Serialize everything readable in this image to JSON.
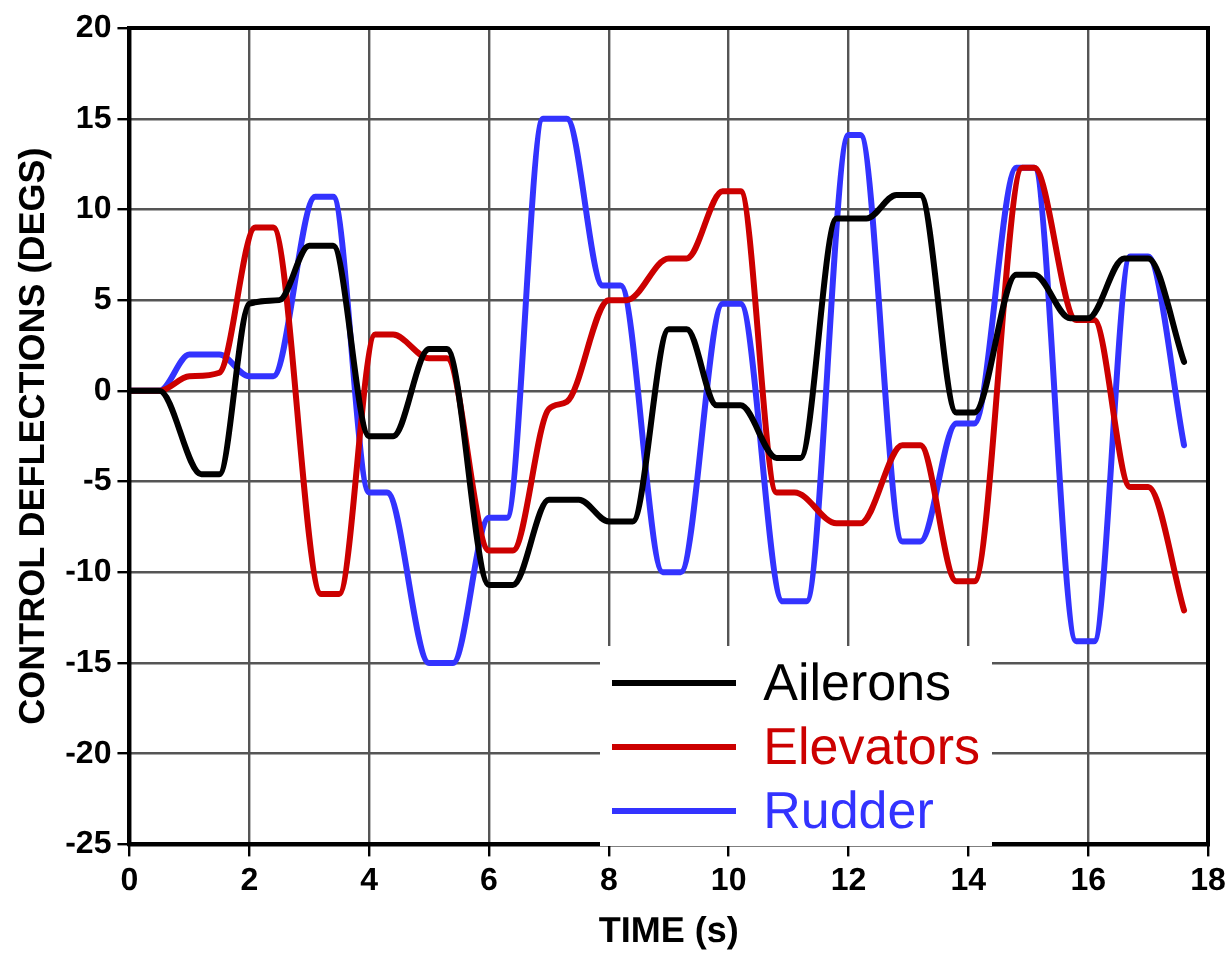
{
  "chart_data": {
    "type": "line",
    "xlabel": "TIME (s)",
    "ylabel": "CONTROL DEFLECTIONS (DEGS)",
    "xlim": [
      0,
      18
    ],
    "xticks": [
      0,
      2,
      4,
      6,
      8,
      10,
      12,
      14,
      16,
      18
    ],
    "ylim": [
      -25,
      20
    ],
    "yticks": [
      -25,
      -20,
      -15,
      -10,
      -5,
      0,
      5,
      10,
      15,
      20
    ],
    "grid": true,
    "legend": "bottom right",
    "marker": "none",
    "line_style": "solid",
    "series": [
      {
        "name": "Ailerons",
        "color": "#000000",
        "x": [
          0,
          0.5,
          1.2,
          1.5,
          2,
          2.5,
          3,
          3.4,
          4,
          4.4,
          5,
          5.3,
          6,
          6.4,
          7,
          7.5,
          8,
          8.4,
          9,
          9.3,
          9.8,
          10.2,
          10.8,
          11.2,
          11.8,
          12.3,
          12.8,
          13.2,
          13.8,
          14.1,
          14.8,
          15.1,
          15.7,
          16,
          16.6,
          17,
          17.6
        ],
        "values": [
          0,
          0,
          -4.6,
          -4.6,
          4.8,
          5,
          8,
          8,
          -2.5,
          -2.5,
          2.3,
          2.3,
          -10.7,
          -10.7,
          -6,
          -6,
          -7.2,
          -7.2,
          3.4,
          3.4,
          -0.8,
          -0.8,
          -3.7,
          -3.7,
          9.5,
          9.5,
          10.8,
          10.8,
          -1.2,
          -1.2,
          6.4,
          6.4,
          4,
          4,
          7.3,
          7.3,
          1.6
        ]
      },
      {
        "name": "Elevators",
        "color": "#cc0000",
        "x": [
          0,
          0.5,
          1,
          1.5,
          2.1,
          2.4,
          3.2,
          3.5,
          4.1,
          4.4,
          5,
          5.3,
          6,
          6.4,
          7,
          7.3,
          8,
          8.3,
          9,
          9.3,
          9.9,
          10.2,
          10.8,
          11.1,
          11.8,
          12.2,
          12.9,
          13.2,
          13.8,
          14.1,
          14.9,
          15.1,
          15.8,
          16.1,
          16.7,
          17,
          17.6
        ],
        "values": [
          0,
          0,
          0.8,
          1,
          9,
          9,
          -11.2,
          -11.2,
          3.1,
          3.1,
          1.8,
          1.8,
          -8.8,
          -8.8,
          -1,
          -0.6,
          5,
          5,
          7.3,
          7.3,
          11,
          11,
          -5.6,
          -5.6,
          -7.3,
          -7.3,
          -3,
          -3,
          -10.5,
          -10.5,
          12.3,
          12.3,
          3.9,
          3.9,
          -5.3,
          -5.3,
          -12.1
        ]
      },
      {
        "name": "Rudder",
        "color": "#3333ff",
        "x": [
          0,
          0.5,
          1,
          1.5,
          2,
          2.4,
          3.1,
          3.4,
          4,
          4.3,
          5,
          5.4,
          6,
          6.3,
          6.9,
          7.3,
          7.9,
          8.2,
          8.9,
          9.2,
          9.9,
          10.2,
          10.9,
          11.3,
          12,
          12.2,
          12.9,
          13.2,
          13.8,
          14.1,
          14.8,
          15.1,
          15.8,
          16.1,
          16.7,
          17,
          17.6
        ],
        "values": [
          0,
          0,
          2,
          2,
          0.8,
          0.8,
          10.7,
          10.7,
          -5.6,
          -5.6,
          -15,
          -15,
          -7,
          -7,
          15,
          15,
          5.8,
          5.8,
          -10,
          -10,
          4.8,
          4.8,
          -11.6,
          -11.6,
          14.1,
          14.1,
          -8.3,
          -8.3,
          -1.8,
          -1.8,
          12.3,
          12.3,
          -13.8,
          -13.8,
          7.4,
          7.4,
          -3
        ]
      }
    ]
  }
}
